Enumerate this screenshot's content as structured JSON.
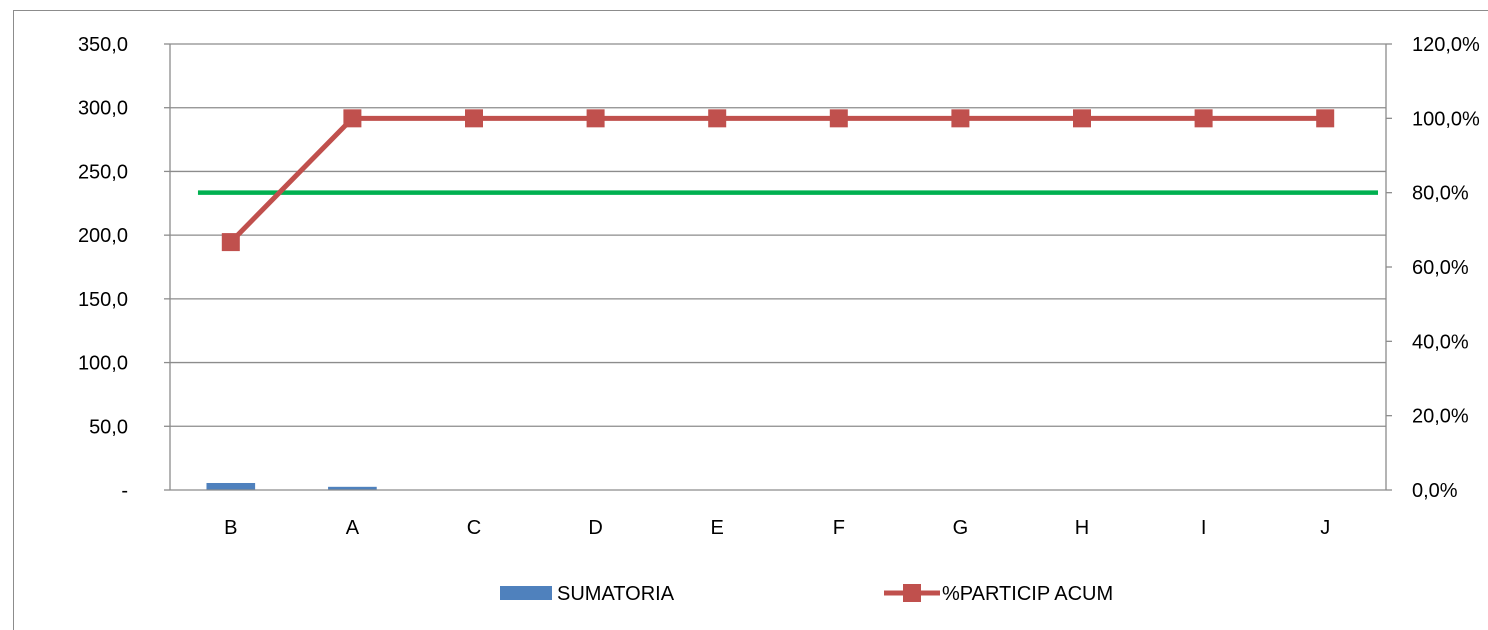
{
  "chart_data": {
    "type": "bar",
    "categories": [
      "B",
      "A",
      "C",
      "D",
      "E",
      "F",
      "G",
      "H",
      "I",
      "J"
    ],
    "series": [
      {
        "name": "SUMATORIA",
        "type": "bar",
        "axis": "left",
        "color": "#4f81bd",
        "values": [
          5.5,
          2.5,
          0,
          0,
          0,
          0,
          0,
          0,
          0,
          0
        ]
      },
      {
        "name": "%PARTICIP ACUM",
        "type": "line",
        "axis": "right",
        "color": "#c0504d",
        "marker": "square",
        "values": [
          0.667,
          1.0,
          1.0,
          1.0,
          1.0,
          1.0,
          1.0,
          1.0,
          1.0,
          1.0
        ]
      }
    ],
    "reference_line": {
      "axis": "right",
      "value": 0.8,
      "color": "#00b050"
    },
    "y_left": {
      "range": [
        0,
        350
      ],
      "ticks": [
        0,
        50,
        100,
        150,
        200,
        250,
        300,
        350
      ],
      "tick_labels": [
        "-",
        "50,0",
        "100,0",
        "150,0",
        "200,0",
        "250,0",
        "300,0",
        "350,0"
      ]
    },
    "y_right": {
      "range": [
        0,
        1.2
      ],
      "ticks": [
        0,
        0.2,
        0.4,
        0.6,
        0.8,
        1.0,
        1.2
      ],
      "tick_labels": [
        "0,0%",
        "20,0%",
        "40,0%",
        "60,0%",
        "80,0%",
        "100,0%",
        "120,0%"
      ]
    },
    "gridlines": true,
    "legend_position": "bottom",
    "title": "",
    "xlabel": "",
    "ylabel": ""
  }
}
